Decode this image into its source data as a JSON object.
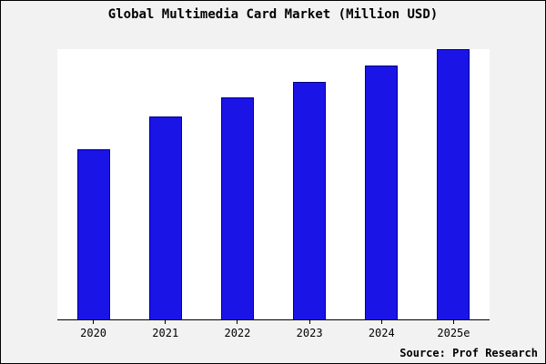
{
  "title": "Global Multimedia Card Market (Million USD)",
  "source": "Source: Prof Research",
  "colors": {
    "bar_fill": "#1a15e6",
    "bar_edge": "#000080",
    "outer_background": "#f2f2f2",
    "plot_background": "#ffffff"
  },
  "chart_data": {
    "type": "bar",
    "title": "Global Multimedia Card Market (Million USD)",
    "categories": [
      "2020",
      "2021",
      "2022",
      "2023",
      "2024",
      "2025e"
    ],
    "values": [
      63,
      75,
      82,
      88,
      94,
      100
    ],
    "xlabel": "",
    "ylabel": "",
    "ylim": [
      0,
      100
    ],
    "grid": false,
    "legend": false,
    "y_axis_labels_visible": false,
    "annotation": "Source: Prof Research"
  }
}
